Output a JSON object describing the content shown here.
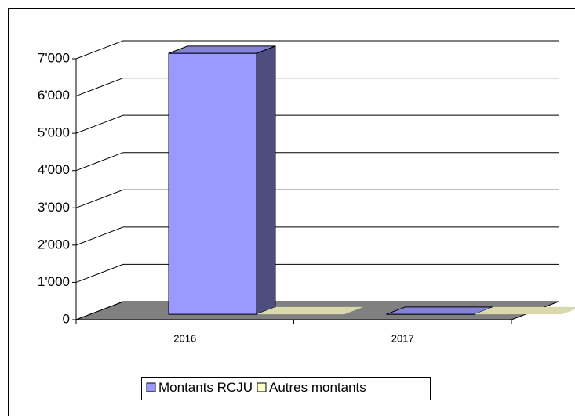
{
  "chart_data": {
    "type": "bar3d",
    "categories": [
      "2016",
      "2017"
    ],
    "series": [
      {
        "name": "Montants RCJU",
        "color": "#9999ff",
        "values": [
          7000,
          0
        ]
      },
      {
        "name": "Autres montants",
        "color": "#ffffcc",
        "values": [
          0,
          0
        ]
      }
    ],
    "ylim": [
      0,
      7000
    ],
    "yticks": [
      0,
      {
        "value": 1000,
        "label": "1'000"
      },
      {
        "value": 2000,
        "label": "2'000"
      },
      {
        "value": 3000,
        "label": "3'000"
      },
      {
        "value": 4000,
        "label": "4'000"
      },
      {
        "value": 5000,
        "label": "5'000"
      },
      {
        "value": 6000,
        "label": "6'000"
      },
      {
        "value": 7000,
        "label": "7'000"
      }
    ],
    "grid": true,
    "legend": "bottom"
  }
}
